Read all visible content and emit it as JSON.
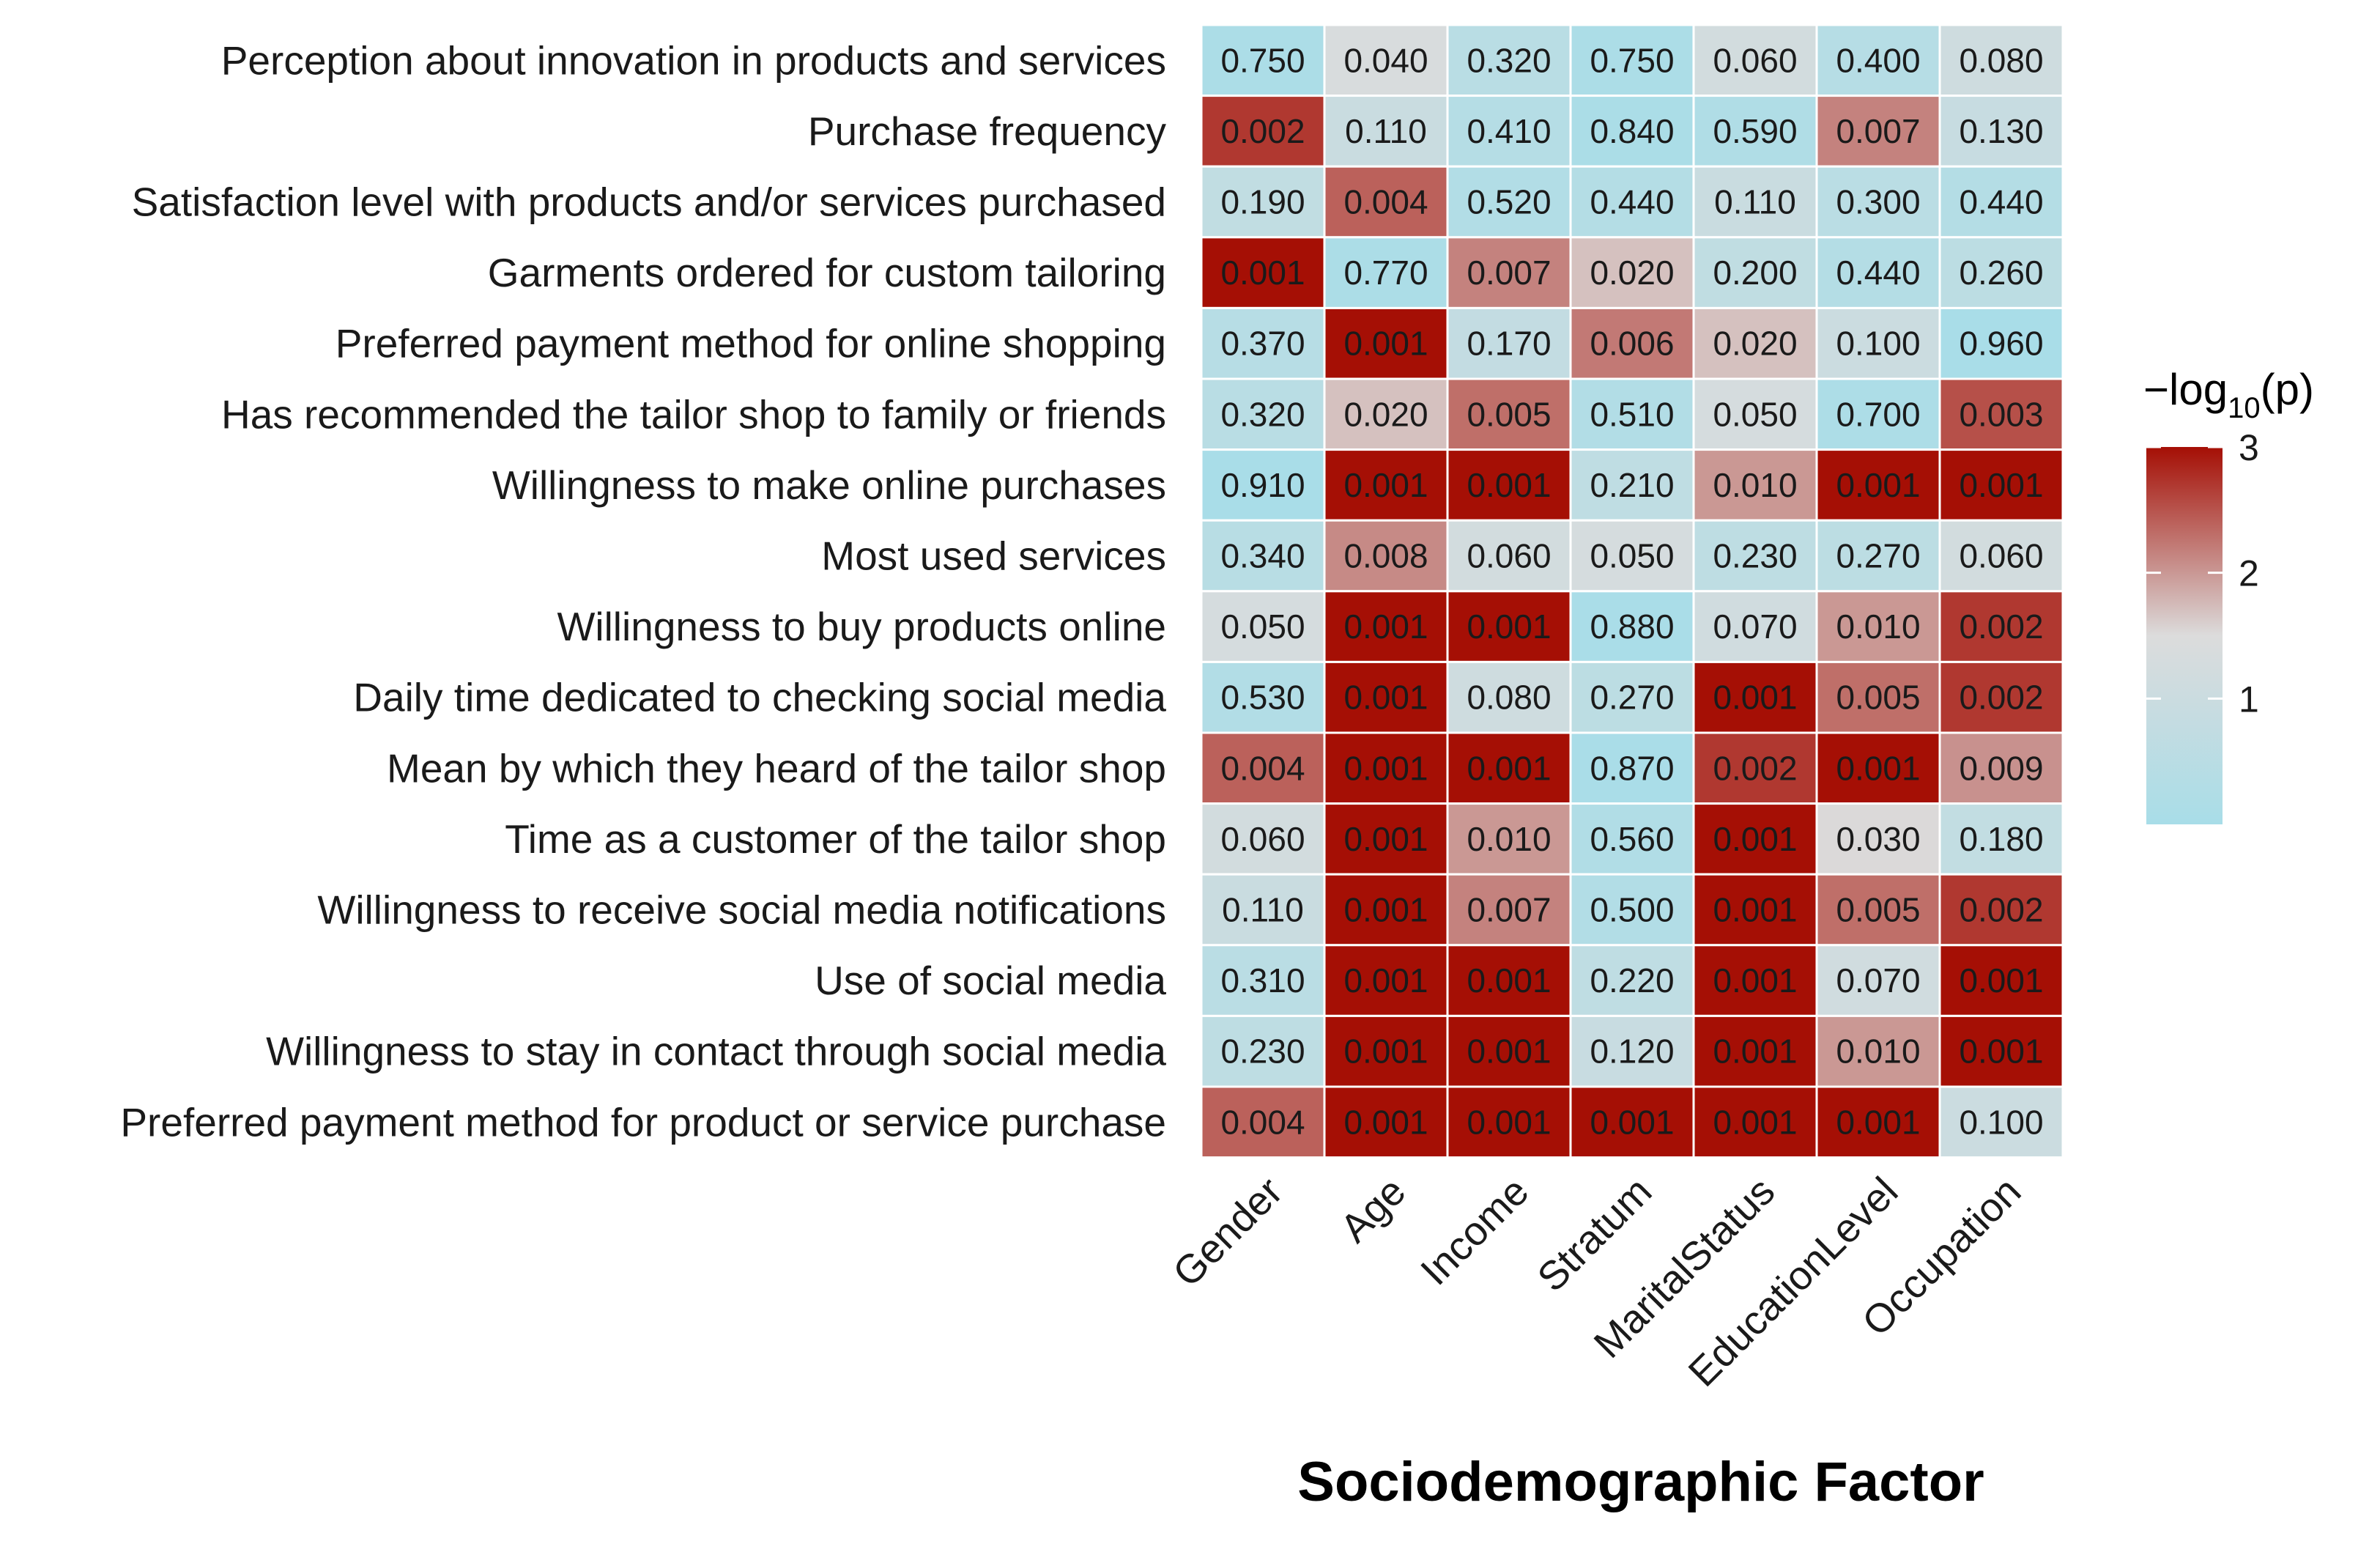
{
  "chart_data": {
    "type": "heatmap",
    "xlabel": "Sociodemographic Factor",
    "ylabel": "",
    "columns": [
      "Gender",
      "Age",
      "Income",
      "Stratum",
      "MaritalStatus",
      "EducationLevel",
      "Occupation"
    ],
    "rows": [
      "Perception about innovation in products and services",
      "Purchase frequency",
      "Satisfaction level with products and/or services purchased",
      "Garments ordered for custom tailoring",
      "Preferred payment method for online shopping",
      "Has recommended the tailor shop to family or friends",
      "Willingness to make online purchases",
      "Most used services",
      "Willingness to buy products online",
      "Daily time dedicated to checking social media",
      "Mean by which they heard of the tailor shop",
      "Time as a customer of the tailor shop",
      "Willingness to receive social media notifications",
      "Use of social media",
      "Willingness to stay in contact through social media",
      "Preferred payment method for product or service purchase"
    ],
    "values": [
      [
        "0.750",
        "0.040",
        "0.320",
        "0.750",
        "0.060",
        "0.400",
        "0.080"
      ],
      [
        "0.002",
        "0.110",
        "0.410",
        "0.840",
        "0.590",
        "0.007",
        "0.130"
      ],
      [
        "0.190",
        "0.004",
        "0.520",
        "0.440",
        "0.110",
        "0.300",
        "0.440"
      ],
      [
        "0.001",
        "0.770",
        "0.007",
        "0.020",
        "0.200",
        "0.440",
        "0.260"
      ],
      [
        "0.370",
        "0.001",
        "0.170",
        "0.006",
        "0.020",
        "0.100",
        "0.960"
      ],
      [
        "0.320",
        "0.020",
        "0.005",
        "0.510",
        "0.050",
        "0.700",
        "0.003"
      ],
      [
        "0.910",
        "0.001",
        "0.001",
        "0.210",
        "0.010",
        "0.001",
        "0.001"
      ],
      [
        "0.340",
        "0.008",
        "0.060",
        "0.050",
        "0.230",
        "0.270",
        "0.060"
      ],
      [
        "0.050",
        "0.001",
        "0.001",
        "0.880",
        "0.070",
        "0.010",
        "0.002"
      ],
      [
        "0.530",
        "0.001",
        "0.080",
        "0.270",
        "0.001",
        "0.005",
        "0.002"
      ],
      [
        "0.004",
        "0.001",
        "0.001",
        "0.870",
        "0.002",
        "0.001",
        "0.009"
      ],
      [
        "0.060",
        "0.001",
        "0.010",
        "0.560",
        "0.001",
        "0.030",
        "0.180"
      ],
      [
        "0.110",
        "0.001",
        "0.007",
        "0.500",
        "0.001",
        "0.005",
        "0.002"
      ],
      [
        "0.310",
        "0.001",
        "0.001",
        "0.220",
        "0.001",
        "0.070",
        "0.001"
      ],
      [
        "0.230",
        "0.001",
        "0.001",
        "0.120",
        "0.001",
        "0.010",
        "0.001"
      ],
      [
        "0.004",
        "0.001",
        "0.001",
        "0.001",
        "0.001",
        "0.001",
        "0.100"
      ]
    ],
    "color_scale": {
      "metric": "-log10(p)",
      "title_prefix": "−log",
      "title_sub": "10",
      "title_suffix": "(p)",
      "min": 0,
      "mid": 1.5,
      "max": 3,
      "low_color": "#a8dde8",
      "mid_color": "#dcdcdc",
      "high_color": "#a50f05",
      "ticks": [
        1,
        2,
        3
      ]
    }
  }
}
